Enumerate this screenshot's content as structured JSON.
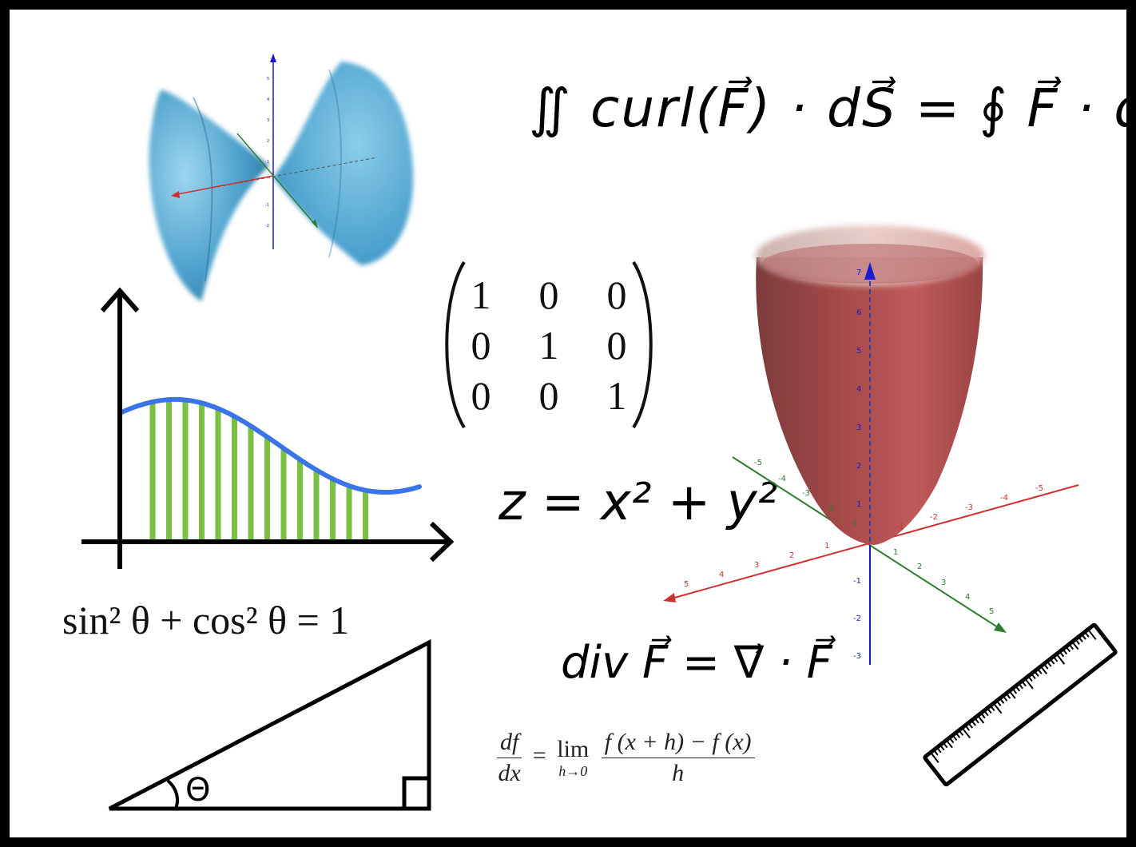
{
  "equations": {
    "stokes": "∬ curl(F⃗) · dS⃗ = ∮ F⃗ · dr⃗",
    "paraboloid": "z = x² + y²",
    "divergence": "div F⃗ = ∇⃗ · F⃗",
    "trig_identity": "sin² θ + cos² θ = 1",
    "derivative": {
      "lhs_num": "df",
      "lhs_den": "dx",
      "equals": "=",
      "lim": "lim",
      "lim_sub": "h→0",
      "rhs_num": "f (x + h) − f (x)",
      "rhs_den": "h"
    },
    "triangle_angle": "Θ"
  },
  "matrix": {
    "rows": [
      [
        "1",
        "0",
        "0"
      ],
      [
        "0",
        "1",
        "0"
      ],
      [
        "0",
        "0",
        "1"
      ]
    ]
  },
  "paraboloid_axes": {
    "z_ticks": [
      "7",
      "6",
      "5",
      "4",
      "3",
      "2",
      "1",
      "-1",
      "-2",
      "-3"
    ],
    "x_ticks": [
      "5",
      "4",
      "3",
      "2",
      "1",
      "-1",
      "-2",
      "-3",
      "-4",
      "-5"
    ],
    "y_ticks": [
      "-5",
      "-4",
      "-3",
      "-2",
      "-1",
      "1",
      "2",
      "3",
      "4",
      "5"
    ]
  },
  "hyperboloid_axes": {
    "z_ticks": [
      "5",
      "4",
      "3",
      "2",
      "1",
      "-1",
      "-2",
      "-3",
      "-4"
    ]
  },
  "colors": {
    "curve_blue": "#3a74e6",
    "bars_green": "#7ac043",
    "surface_blue": "#4aa8d8",
    "surface_red": "#b04a4a",
    "axis_red": "#d03030",
    "axis_green": "#2e7d2e",
    "axis_blue": "#1a1ad0"
  }
}
